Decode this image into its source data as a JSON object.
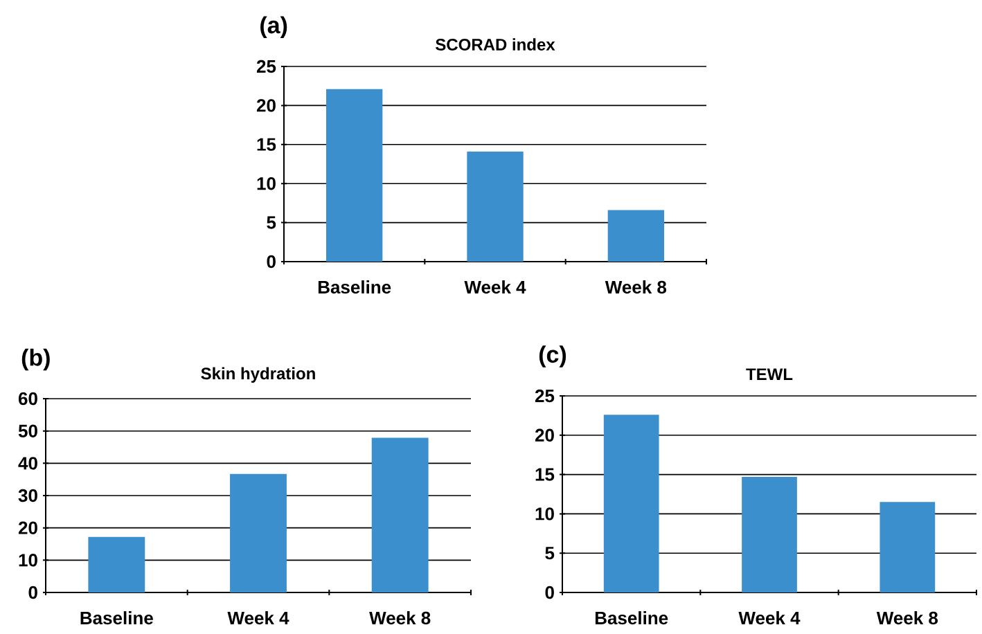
{
  "chart_data": [
    {
      "type": "bar",
      "title": "SCORAD index",
      "annotations": [
        "(a)"
      ],
      "categories": [
        "Baseline",
        "Week 4",
        "Week 8"
      ],
      "values": [
        22.1,
        14.1,
        6.6
      ],
      "color": "#3a8fcc",
      "ylim": [
        0,
        25
      ],
      "yticks": [
        0,
        5,
        10,
        15,
        20,
        25
      ],
      "grid": "y"
    },
    {
      "type": "bar",
      "title": "Skin hydration",
      "annotations": [
        "(b)"
      ],
      "categories": [
        "Baseline",
        "Week 4",
        "Week 8"
      ],
      "values": [
        17.2,
        36.7,
        47.9
      ],
      "color": "#3a8fcc",
      "ylim": [
        0,
        60
      ],
      "yticks": [
        0,
        10,
        20,
        30,
        40,
        50,
        60
      ],
      "grid": "y"
    },
    {
      "type": "bar",
      "title": "TEWL",
      "annotations": [
        "(c)"
      ],
      "categories": [
        "Baseline",
        "Week 4",
        "Week 8"
      ],
      "values": [
        22.6,
        14.7,
        11.5
      ],
      "color": "#3a8fcc",
      "ylim": [
        0,
        25
      ],
      "yticks": [
        0,
        5,
        10,
        15,
        20,
        25
      ],
      "grid": "y"
    }
  ]
}
